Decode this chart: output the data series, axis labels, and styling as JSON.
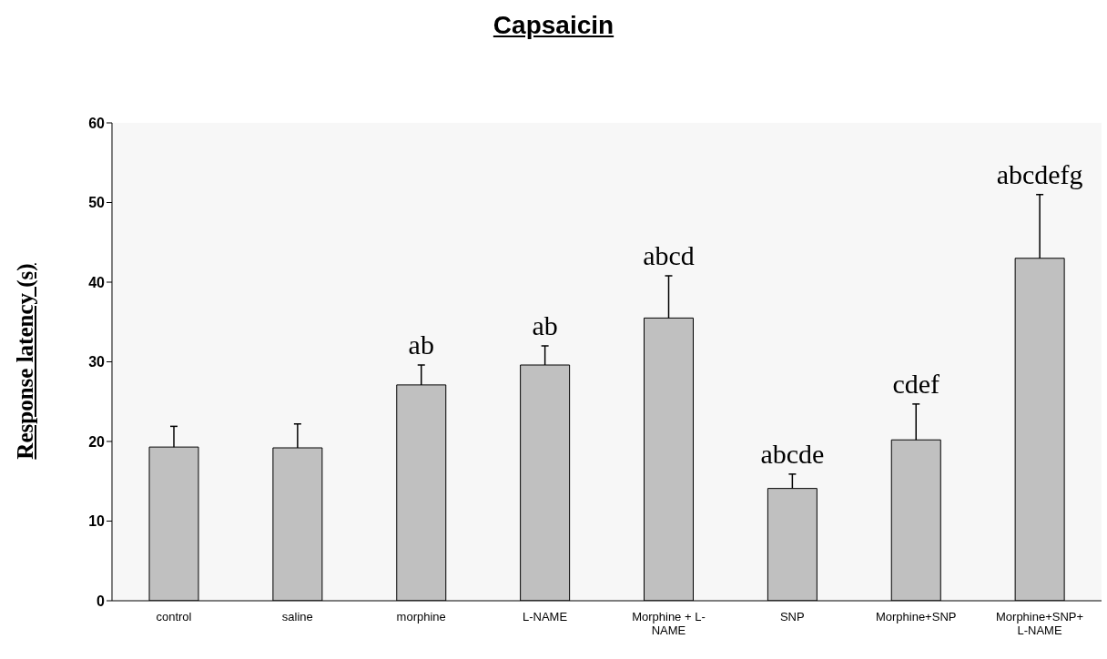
{
  "chart_data": {
    "type": "bar",
    "title": "Capsaicin",
    "ylabel": "Response latency (s)",
    "categories": [
      "control",
      "saline",
      "morphine",
      "L-NAME",
      "Morphine + L-NAME",
      "SNP",
      "Morphine+SNP",
      "Morphine+SNP+L-NAME"
    ],
    "values": [
      19.3,
      19.2,
      27.1,
      29.6,
      35.5,
      14.1,
      20.2,
      43
    ],
    "errors": [
      [
        19.3,
        21.9
      ],
      [
        19.2,
        22.2
      ],
      [
        27.1,
        29.6
      ],
      [
        29.6,
        32
      ],
      [
        35.5,
        40.8
      ],
      [
        14.1,
        15.9
      ],
      [
        20.2,
        24.7
      ],
      [
        43,
        51
      ]
    ],
    "color": "#c0c0c0",
    "ylim": [
      0,
      60
    ],
    "yticks": [
      0,
      10,
      20,
      30,
      40,
      50,
      60
    ],
    "annotations": [
      {
        "text": "ab",
        "x": "morphine",
        "y": 27.1
      },
      {
        "text": "ab",
        "x": "L-NAME",
        "y": 29.6
      },
      {
        "text": "abcd",
        "x": "Morphine + L-NAME",
        "y": 35.5
      },
      {
        "text": "abcde",
        "x": "SNP",
        "y": 14.1
      },
      {
        "text": "cdef",
        "x": "Morphine+SNP",
        "y": 20.2
      },
      {
        "text": "abcdefg",
        "x": "Morphine+SNP+L-NAME",
        "y": 43
      }
    ]
  }
}
